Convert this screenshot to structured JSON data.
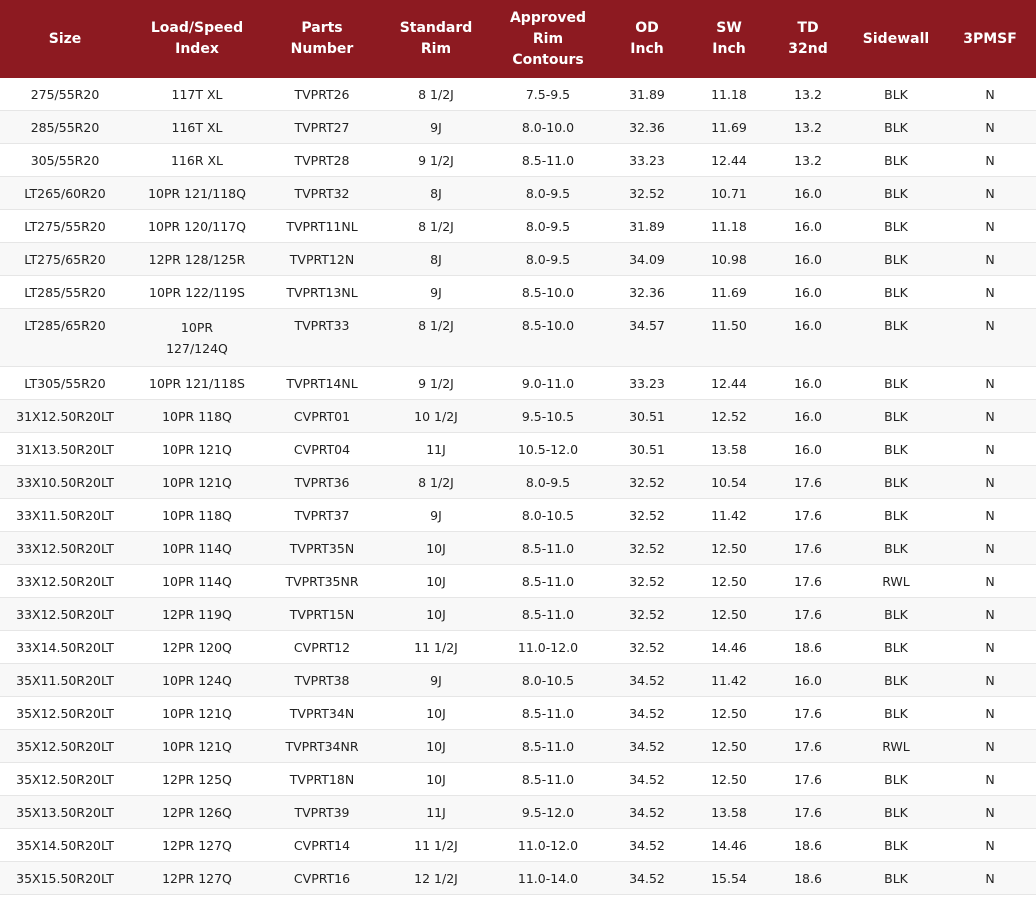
{
  "table": {
    "headers": [
      [
        "Size"
      ],
      [
        "Load/Speed",
        "Index"
      ],
      [
        "Parts",
        "Number"
      ],
      [
        "Standard",
        "Rim"
      ],
      [
        "Approved",
        "Rim",
        "Contours"
      ],
      [
        "OD",
        "Inch"
      ],
      [
        "SW",
        "Inch"
      ],
      [
        "TD",
        "32nd"
      ],
      [
        "Sidewall"
      ],
      [
        "3PMSF"
      ]
    ],
    "rows": [
      [
        "275/55R20",
        "117T XL",
        "TVPRT26",
        "8 1/2J",
        "7.5-9.5",
        "31.89",
        "11.18",
        "13.2",
        "BLK",
        "N"
      ],
      [
        "285/55R20",
        "116T XL",
        "TVPRT27",
        "9J",
        "8.0-10.0",
        "32.36",
        "11.69",
        "13.2",
        "BLK",
        "N"
      ],
      [
        "305/55R20",
        "116R XL",
        "TVPRT28",
        "9 1/2J",
        "8.5-11.0",
        "33.23",
        "12.44",
        "13.2",
        "BLK",
        "N"
      ],
      [
        "LT265/60R20",
        "10PR 121/118Q",
        "TVPRT32",
        "8J",
        "8.0-9.5",
        "32.52",
        "10.71",
        "16.0",
        "BLK",
        "N"
      ],
      [
        "LT275/55R20",
        "10PR 120/117Q",
        "TVPRT11NL",
        "8 1/2J",
        "8.0-9.5",
        "31.89",
        "11.18",
        "16.0",
        "BLK",
        "N"
      ],
      [
        "LT275/65R20",
        "12PR 128/125R",
        "TVPRT12N",
        "8J",
        "8.0-9.5",
        "34.09",
        "10.98",
        "16.0",
        "BLK",
        "N"
      ],
      [
        "LT285/55R20",
        "10PR 122/119S",
        "TVPRT13NL",
        "9J",
        "8.5-10.0",
        "32.36",
        "11.69",
        "16.0",
        "BLK",
        "N"
      ],
      [
        "LT285/65R20",
        [
          "10PR",
          "127/124Q"
        ],
        "TVPRT33",
        "8 1/2J",
        "8.5-10.0",
        "34.57",
        "11.50",
        "16.0",
        "BLK",
        "N"
      ],
      [
        "LT305/55R20",
        "10PR 121/118S",
        "TVPRT14NL",
        "9 1/2J",
        "9.0-11.0",
        "33.23",
        "12.44",
        "16.0",
        "BLK",
        "N"
      ],
      [
        "31X12.50R20LT",
        "10PR 118Q",
        "CVPRT01",
        "10 1/2J",
        "9.5-10.5",
        "30.51",
        "12.52",
        "16.0",
        "BLK",
        "N"
      ],
      [
        "31X13.50R20LT",
        "10PR 121Q",
        "CVPRT04",
        "11J",
        "10.5-12.0",
        "30.51",
        "13.58",
        "16.0",
        "BLK",
        "N"
      ],
      [
        "33X10.50R20LT",
        "10PR 121Q",
        "TVPRT36",
        "8 1/2J",
        "8.0-9.5",
        "32.52",
        "10.54",
        "17.6",
        "BLK",
        "N"
      ],
      [
        "33X11.50R20LT",
        "10PR 118Q",
        "TVPRT37",
        "9J",
        "8.0-10.5",
        "32.52",
        "11.42",
        "17.6",
        "BLK",
        "N"
      ],
      [
        "33X12.50R20LT",
        "10PR 114Q",
        "TVPRT35N",
        "10J",
        "8.5-11.0",
        "32.52",
        "12.50",
        "17.6",
        "BLK",
        "N"
      ],
      [
        "33X12.50R20LT",
        "10PR 114Q",
        "TVPRT35NR",
        "10J",
        "8.5-11.0",
        "32.52",
        "12.50",
        "17.6",
        "RWL",
        "N"
      ],
      [
        "33X12.50R20LT",
        "12PR 119Q",
        "TVPRT15N",
        "10J",
        "8.5-11.0",
        "32.52",
        "12.50",
        "17.6",
        "BLK",
        "N"
      ],
      [
        "33X14.50R20LT",
        "12PR 120Q",
        "CVPRT12",
        "11 1/2J",
        "11.0-12.0",
        "32.52",
        "14.46",
        "18.6",
        "BLK",
        "N"
      ],
      [
        "35X11.50R20LT",
        "10PR 124Q",
        "TVPRT38",
        "9J",
        "8.0-10.5",
        "34.52",
        "11.42",
        "16.0",
        "BLK",
        "N"
      ],
      [
        "35X12.50R20LT",
        "10PR 121Q",
        "TVPRT34N",
        "10J",
        "8.5-11.0",
        "34.52",
        "12.50",
        "17.6",
        "BLK",
        "N"
      ],
      [
        "35X12.50R20LT",
        "10PR 121Q",
        "TVPRT34NR",
        "10J",
        "8.5-11.0",
        "34.52",
        "12.50",
        "17.6",
        "RWL",
        "N"
      ],
      [
        "35X12.50R20LT",
        "12PR 125Q",
        "TVPRT18N",
        "10J",
        "8.5-11.0",
        "34.52",
        "12.50",
        "17.6",
        "BLK",
        "N"
      ],
      [
        "35X13.50R20LT",
        "12PR 126Q",
        "TVPRT39",
        "11J",
        "9.5-12.0",
        "34.52",
        "13.58",
        "17.6",
        "BLK",
        "N"
      ],
      [
        "35X14.50R20LT",
        "12PR 127Q",
        "CVPRT14",
        "11 1/2J",
        "11.0-12.0",
        "34.52",
        "14.46",
        "18.6",
        "BLK",
        "N"
      ],
      [
        "35X15.50R20LT",
        "12PR 127Q",
        "CVPRT16",
        "12 1/2J",
        "11.0-14.0",
        "34.52",
        "15.54",
        "18.6",
        "BLK",
        "N"
      ]
    ]
  }
}
